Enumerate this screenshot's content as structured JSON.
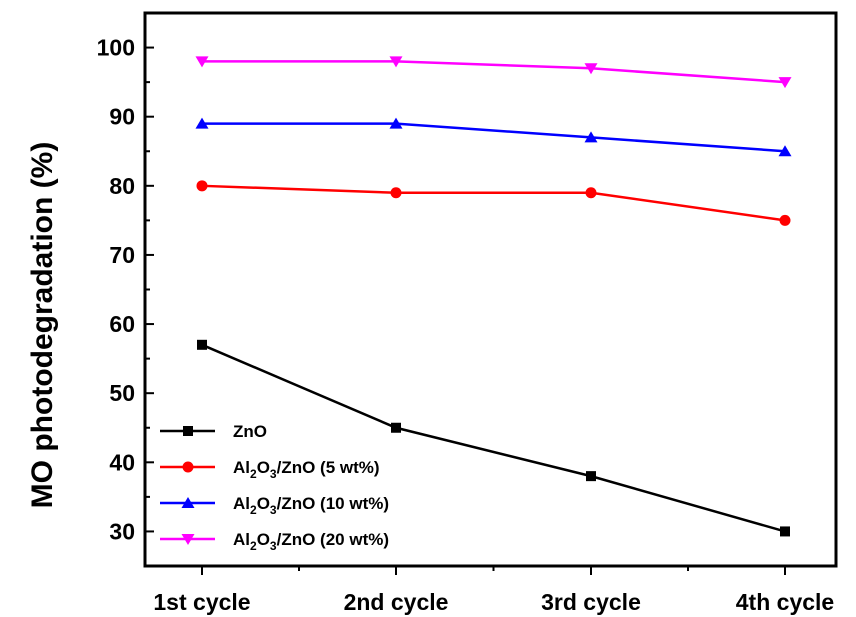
{
  "chart_data": {
    "type": "line",
    "categories": [
      "1st cycle",
      "2nd cycle",
      "3rd cycle",
      "4th cycle"
    ],
    "ylabel": "MO photodegradation (%)",
    "xlabel": "",
    "ylim": [
      25,
      105
    ],
    "yticks": [
      30,
      40,
      50,
      60,
      70,
      80,
      90,
      100
    ],
    "legend_position": "bottom-left",
    "grid": false,
    "series": [
      {
        "name": "ZnO",
        "legend": [
          "ZnO"
        ],
        "color": "#000000",
        "marker": "square",
        "values": [
          57,
          45,
          38,
          30
        ]
      },
      {
        "name": "Al2O3/ZnO (5 wt%)",
        "legend": [
          "Al",
          "2",
          "O",
          "3",
          "/ZnO (5 wt%)"
        ],
        "color": "#ff0000",
        "marker": "circle",
        "values": [
          80,
          79,
          79,
          75
        ]
      },
      {
        "name": "Al2O3/ZnO (10 wt%)",
        "legend": [
          "Al",
          "2",
          "O",
          "3",
          "/ZnO (10 wt%)"
        ],
        "color": "#0000ff",
        "marker": "triangle-up",
        "values": [
          89,
          89,
          87,
          85
        ]
      },
      {
        "name": "Al2O3/ZnO (20 wt%)",
        "legend": [
          "Al",
          "2",
          "O",
          "3",
          "/ZnO (20 wt%)"
        ],
        "color": "#ff00ff",
        "marker": "triangle-down",
        "values": [
          98,
          98,
          97,
          95
        ]
      }
    ]
  }
}
